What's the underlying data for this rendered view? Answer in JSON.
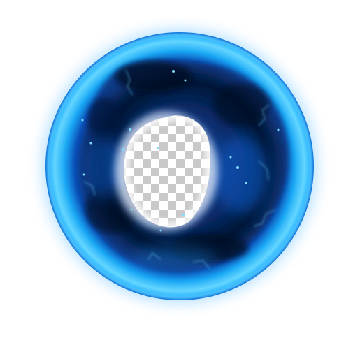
{
  "image": {
    "subject": "orb-energy-sphere",
    "colors": {
      "background": "#ffffff",
      "rim_bright": "#4fd2ff",
      "rim_mid": "#1aa8f5",
      "rim_edge": "#0a6fd8",
      "inner_deep": "#061c4a",
      "inner_mid": "#0b3d8c",
      "core_glow": "#f4f7ff",
      "checker_light": "#ffffff",
      "checker_dark": "#c9c9c9",
      "sparkle": "#5fd0ff"
    }
  }
}
